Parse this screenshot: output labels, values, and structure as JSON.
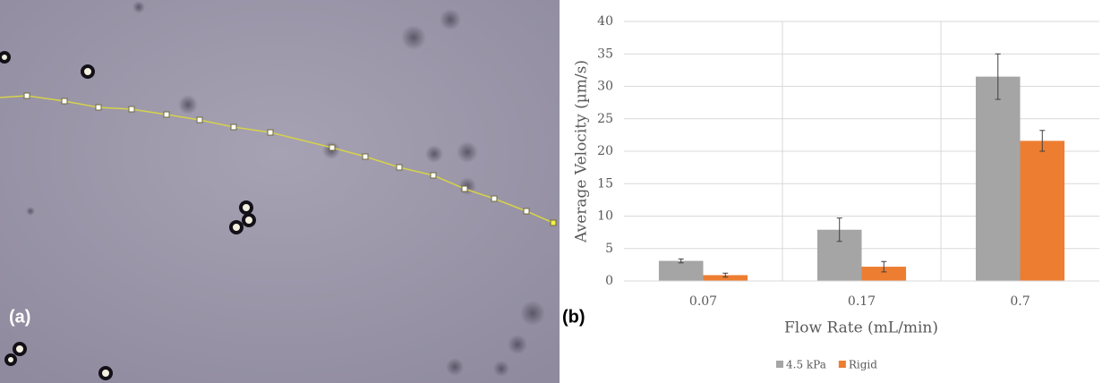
{
  "panel_labels": [
    "(a)",
    "(b)"
  ],
  "chart_data": {
    "type": "bar",
    "x_label": "Flow Rate (mL/min)",
    "y_label": "Average Velocity (µm/s)",
    "categories": [
      "0.07",
      "0.17",
      "0.7"
    ],
    "series": [
      {
        "name": "4.5 kPa",
        "color": "#a5a5a5",
        "values": [
          3.1,
          7.9,
          31.5
        ],
        "errors": [
          0.3,
          1.8,
          3.5
        ]
      },
      {
        "name": "Rigid",
        "color": "#ed7d31",
        "values": [
          0.9,
          2.2,
          21.6
        ],
        "errors": [
          0.3,
          0.8,
          1.6
        ]
      }
    ],
    "ylim": [
      0,
      40
    ],
    "yticks": [
      0,
      5,
      10,
      15,
      20,
      25,
      30,
      35,
      40
    ],
    "grid": true,
    "legend": "bottom"
  }
}
